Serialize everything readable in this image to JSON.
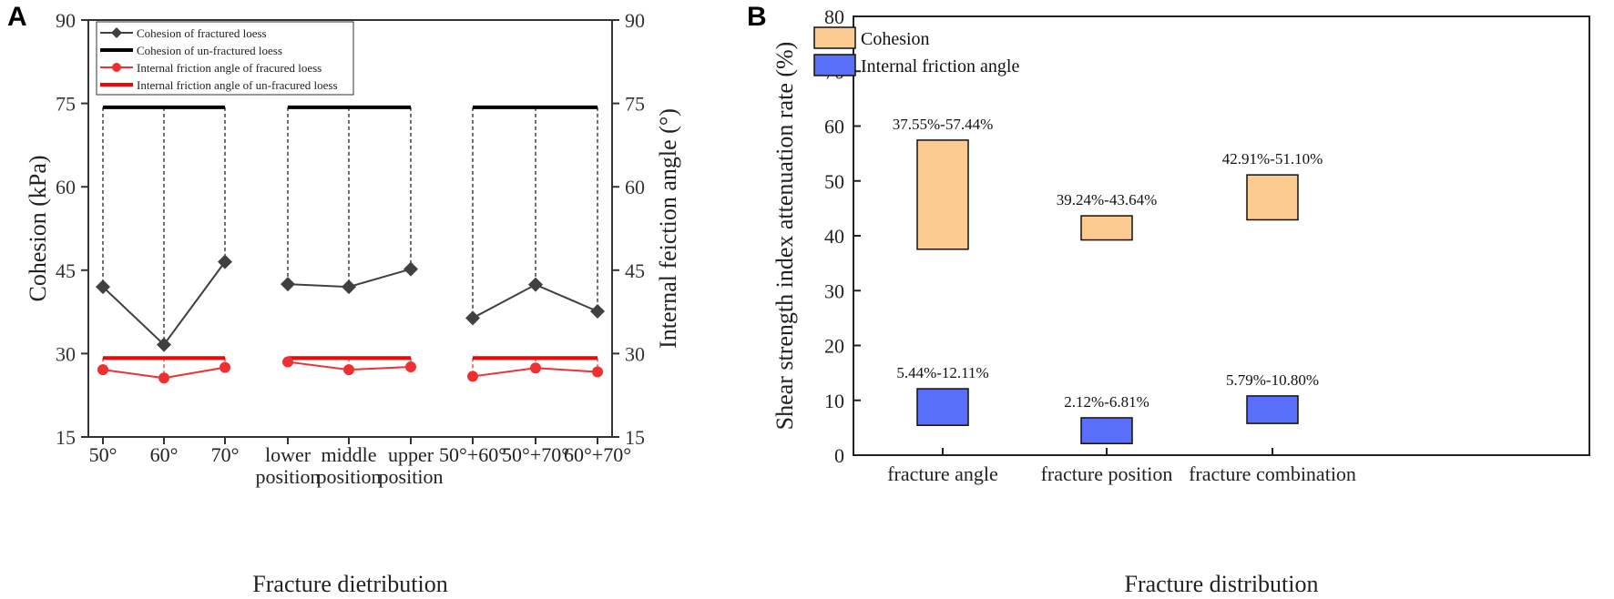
{
  "chart_data": [
    {
      "panel": "A",
      "type": "line",
      "categories": [
        [
          "50°"
        ],
        [
          "60°"
        ],
        [
          "70°"
        ],
        [
          "lower",
          "position"
        ],
        [
          "middle",
          "position"
        ],
        [
          "upper",
          "position"
        ],
        [
          "50°+60°"
        ],
        [
          "50°+70°"
        ],
        [
          "60°+70°"
        ]
      ],
      "groups": [
        [
          0,
          1,
          2
        ],
        [
          3,
          4,
          5
        ],
        [
          6,
          7,
          8
        ]
      ],
      "xlabel": "Fracture dietribution",
      "ylabel": "Cohesion (kPa)",
      "y2label": "Internal feiction angle (°)",
      "ylim": [
        15,
        90
      ],
      "y2lim": [
        15,
        90
      ],
      "yticks": [
        15,
        30,
        45,
        60,
        75,
        90
      ],
      "series": [
        {
          "name": "Cohesion of fractured loess",
          "color": "#404040",
          "marker": "diamond",
          "values": [
            42.0,
            31.6,
            46.5,
            42.5,
            42.0,
            45.2,
            36.4,
            42.4,
            37.6
          ]
        },
        {
          "name": "Cohesion of un-fractured loess",
          "color": "#000000",
          "marker": "none",
          "values": [
            74.3,
            74.3,
            74.3,
            74.3,
            74.3,
            74.3,
            74.3,
            74.3,
            74.3
          ]
        },
        {
          "name": "Internal friction angle of fracured loess",
          "color": "#f03030",
          "marker": "circle",
          "values": [
            27.1,
            25.6,
            27.5,
            28.5,
            27.1,
            27.6,
            25.9,
            27.4,
            26.7
          ]
        },
        {
          "name": "Internal friction angle of un-fracured loess",
          "color": "#ff0000",
          "marker": "none",
          "values": [
            29.2,
            29.2,
            29.2,
            29.2,
            29.2,
            29.2,
            29.2,
            29.2,
            29.2
          ]
        }
      ]
    },
    {
      "panel": "B",
      "type": "bar",
      "categories": [
        "fracture angle",
        "fracture position",
        "fracture combination"
      ],
      "xlabel": "Fracture distribution",
      "ylabel": "Shear strength index attenuation rate (%)",
      "ylim": [
        0,
        80
      ],
      "yticks": [
        0,
        10,
        20,
        30,
        40,
        50,
        60,
        70,
        80
      ],
      "series": [
        {
          "name": "Cohesion",
          "color": "#FDCB8F",
          "ranges": [
            [
              37.55,
              57.44
            ],
            [
              39.24,
              43.64
            ],
            [
              42.91,
              51.1
            ]
          ],
          "labels": [
            "37.55%-57.44%",
            "39.24%-43.64%",
            "42.91%-51.10%"
          ]
        },
        {
          "name": "Internal friction angle",
          "color": "#5A6FF9",
          "ranges": [
            [
              5.44,
              12.11
            ],
            [
              2.12,
              6.81
            ],
            [
              5.79,
              10.8
            ]
          ],
          "labels": [
            "5.44%-12.11%",
            "2.12%-6.81%",
            "5.79%-10.80%"
          ]
        }
      ]
    }
  ]
}
